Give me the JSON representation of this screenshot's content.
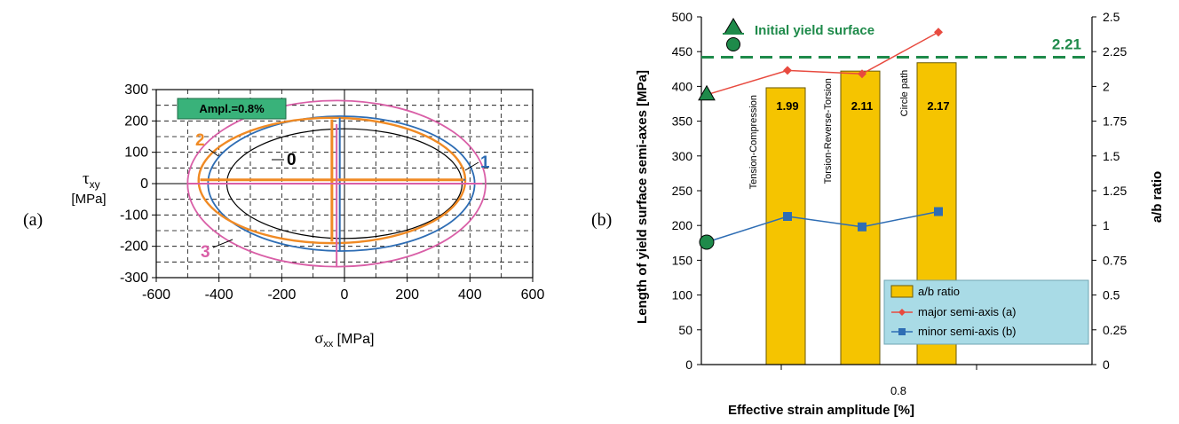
{
  "chart_data": [
    {
      "panel_label": "(a)",
      "type": "line",
      "xlabel_symbol": "σ",
      "xlabel_sub": "xx",
      "xlabel_unit": " [MPa]",
      "ylabel_symbol": "τ",
      "ylabel_sub": "xy",
      "ylabel_unit": "[MPa]",
      "xlim": [
        -600,
        600
      ],
      "ylim": [
        -300,
        300
      ],
      "x_ticks": [
        -600,
        -400,
        -200,
        0,
        200,
        400,
        600
      ],
      "y_ticks": [
        -300,
        -200,
        -100,
        0,
        100,
        200,
        300
      ],
      "grid": true,
      "annotation": "Ampl.=0.8%",
      "series": [
        {
          "name": "0",
          "color": "#000000",
          "center": [
            0,
            0
          ],
          "semi_x": 375,
          "semi_y": 175
        },
        {
          "name": "1",
          "color": "#2e6db4",
          "center": [
            -10,
            0
          ],
          "semi_x": 425,
          "semi_y": 215
        },
        {
          "name": "2",
          "color": "#f08a24",
          "center": [
            -40,
            10
          ],
          "semi_x": 425,
          "semi_y": 200
        },
        {
          "name": "3",
          "color": "#d95fa7",
          "center": [
            -25,
            0
          ],
          "semi_x": 475,
          "semi_y": 265
        }
      ],
      "axes_lines": [
        {
          "color": "#2e6db4",
          "orient": "v",
          "x": -15,
          "y_from": -215,
          "y_to": 210
        },
        {
          "color": "#2e6db4",
          "orient": "h",
          "y": 12,
          "x_from": -425,
          "x_to": 385
        },
        {
          "color": "#f08a24",
          "orient": "v",
          "x": -40,
          "y_from": -185,
          "y_to": 205
        },
        {
          "color": "#f08a24",
          "orient": "h",
          "y": 12,
          "x_from": -460,
          "x_to": 380
        },
        {
          "color": "#d95fa7",
          "orient": "v",
          "x": -25,
          "y_from": -265,
          "y_to": 190
        },
        {
          "color": "#d95fa7",
          "orient": "h",
          "y": 0,
          "x_from": -500,
          "x_to": 440
        }
      ]
    },
    {
      "panel_label": "(b)",
      "type": "bar",
      "ylabel": "Length of yield surface semi-axes [MPa]",
      "y2label": "a/b ratio",
      "xlabel": "Effective strain amplitude [%]",
      "x_tick": "0.8",
      "ylim": [
        0,
        500
      ],
      "y_ticks": [
        0,
        50,
        100,
        150,
        200,
        250,
        300,
        350,
        400,
        450,
        500
      ],
      "y2lim": [
        0,
        2.5
      ],
      "y2_ticks": [
        "0",
        "0.25",
        "0.5",
        "0.75",
        "1",
        "1.25",
        "1.5",
        "1.75",
        "2",
        "2.25",
        "2.5"
      ],
      "categories": [
        "Tension-Compression",
        "Torsion-Reverse-Torsion",
        "Circle path"
      ],
      "bar_labels": [
        "1.99",
        "2.11",
        "2.17"
      ],
      "ab_ratio": [
        1.99,
        2.11,
        2.17
      ],
      "major_semi_axis": [
        423,
        418,
        478
      ],
      "minor_semi_axis": [
        213,
        198,
        220
      ],
      "initial": {
        "major": 388,
        "minor": 176,
        "ratio": 2.21
      },
      "initial_label": "Initial yield surface",
      "ratio_line_label": "2.21",
      "legend": [
        "a/b ratio",
        "major semi-axis (a)",
        "minor semi-axis (b)"
      ],
      "colors": {
        "bar": "#f5c400",
        "bar_edge": "#6b5a00",
        "major": "#e84a3f",
        "minor": "#2e6db4",
        "initial": "#1e8a4a",
        "legend_bg": "#a9dbe6"
      }
    }
  ]
}
